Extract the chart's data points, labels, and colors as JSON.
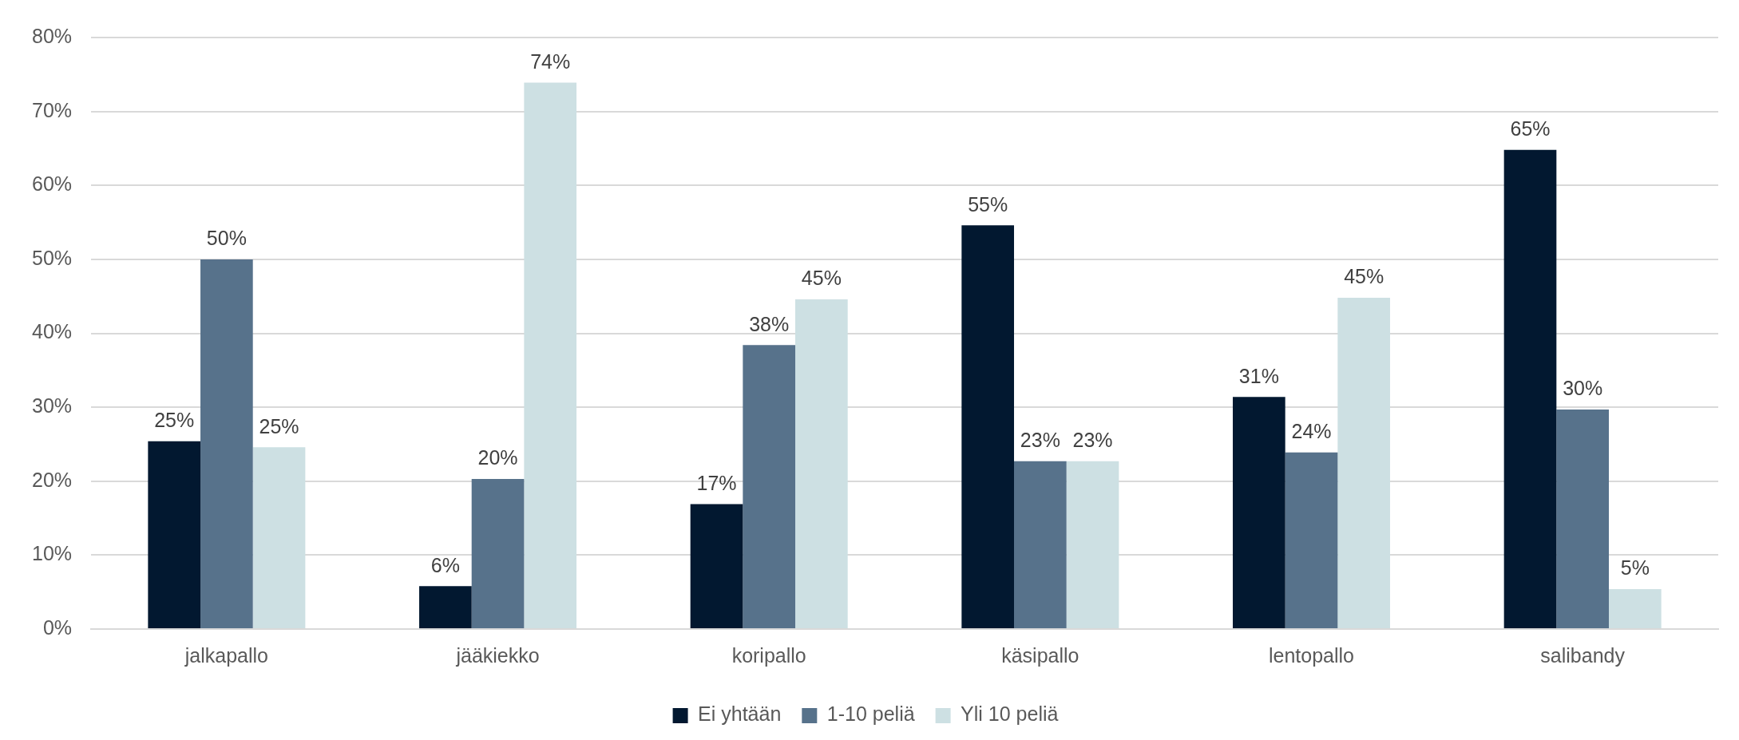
{
  "chart_data": {
    "type": "bar",
    "categories": [
      "jalkapallo",
      "jääkiekko",
      "koripallo",
      "käsipallo",
      "lentopallo",
      "salibandy"
    ],
    "series": [
      {
        "name": "Ei yhtään",
        "color": "#021830",
        "values": [
          25.4,
          5.8,
          16.9,
          54.6,
          31.4,
          64.8
        ],
        "value_labels": [
          "25%",
          "6%",
          "17%",
          "55%",
          "31%",
          "65%"
        ]
      },
      {
        "name": "1-10 peliä",
        "color": "#57728b",
        "values": [
          50,
          20.3,
          38.4,
          22.7,
          23.9,
          29.7
        ],
        "value_labels": [
          "50%",
          "20%",
          "38%",
          "23%",
          "24%",
          "30%"
        ]
      },
      {
        "name": "Yli 10 peliä",
        "color": "#cde0e3",
        "values": [
          24.6,
          73.9,
          44.6,
          22.7,
          44.8,
          5.4
        ],
        "value_labels": [
          "25%",
          "74%",
          "45%",
          "23%",
          "45%",
          "5%"
        ]
      }
    ],
    "ylim": [
      0,
      80
    ],
    "yticks": [
      {
        "value": 0,
        "label": "0%"
      },
      {
        "value": 10,
        "label": "10%"
      },
      {
        "value": 20,
        "label": "20%"
      },
      {
        "value": 30,
        "label": "30%"
      },
      {
        "value": 40,
        "label": "40%"
      },
      {
        "value": 50,
        "label": "50%"
      },
      {
        "value": 60,
        "label": "60%"
      },
      {
        "value": 70,
        "label": "70%"
      },
      {
        "value": 80,
        "label": "80%"
      }
    ],
    "grid": "y",
    "legend": "bottom"
  }
}
